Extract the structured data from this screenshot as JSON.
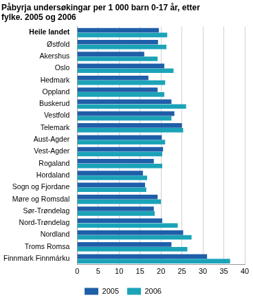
{
  "chart_data": {
    "type": "bar",
    "orientation": "horizontal",
    "title": [
      "Påbyrja undersøkingar per 1 000 barn 0-17 år, etter",
      "fylke. 2005 og 2006"
    ],
    "categories": [
      "Heile landet",
      "Østfold",
      "Akershus",
      "Oslo",
      "Hedmark",
      "Oppland",
      "Buskerud",
      "Vestfold",
      "Telemark",
      "Aust-Agder",
      "Vest-Agder",
      "Rogaland",
      "Hordaland",
      "Sogn og Fjordane",
      "Møre og Romsdal",
      "Sør-Trøndelag",
      "Nord-Trøndelag",
      "Nordland",
      "Troms Romsa",
      "Finnmark Finnmárku"
    ],
    "series": [
      {
        "name": "2005",
        "color": "#1f5ea8",
        "values": [
          19.5,
          19.3,
          16,
          20.8,
          17,
          19.2,
          22.5,
          23.2,
          25,
          20.2,
          20.5,
          18.3,
          15.7,
          16.2,
          19.2,
          18.3,
          20.3,
          25.3,
          22.5,
          31
        ]
      },
      {
        "name": "2006",
        "color": "#1ba3b8",
        "values": [
          21.5,
          21.3,
          19.2,
          23,
          21,
          20.8,
          26,
          22.5,
          25.3,
          21,
          20.3,
          20.3,
          16.7,
          16.5,
          20,
          18.5,
          24,
          27.3,
          26.3,
          36.5
        ]
      }
    ],
    "xlim": [
      0,
      40
    ],
    "xticks": [
      0,
      5,
      10,
      15,
      20,
      25,
      30,
      35,
      40
    ],
    "grid": true,
    "legend": "bottom"
  }
}
